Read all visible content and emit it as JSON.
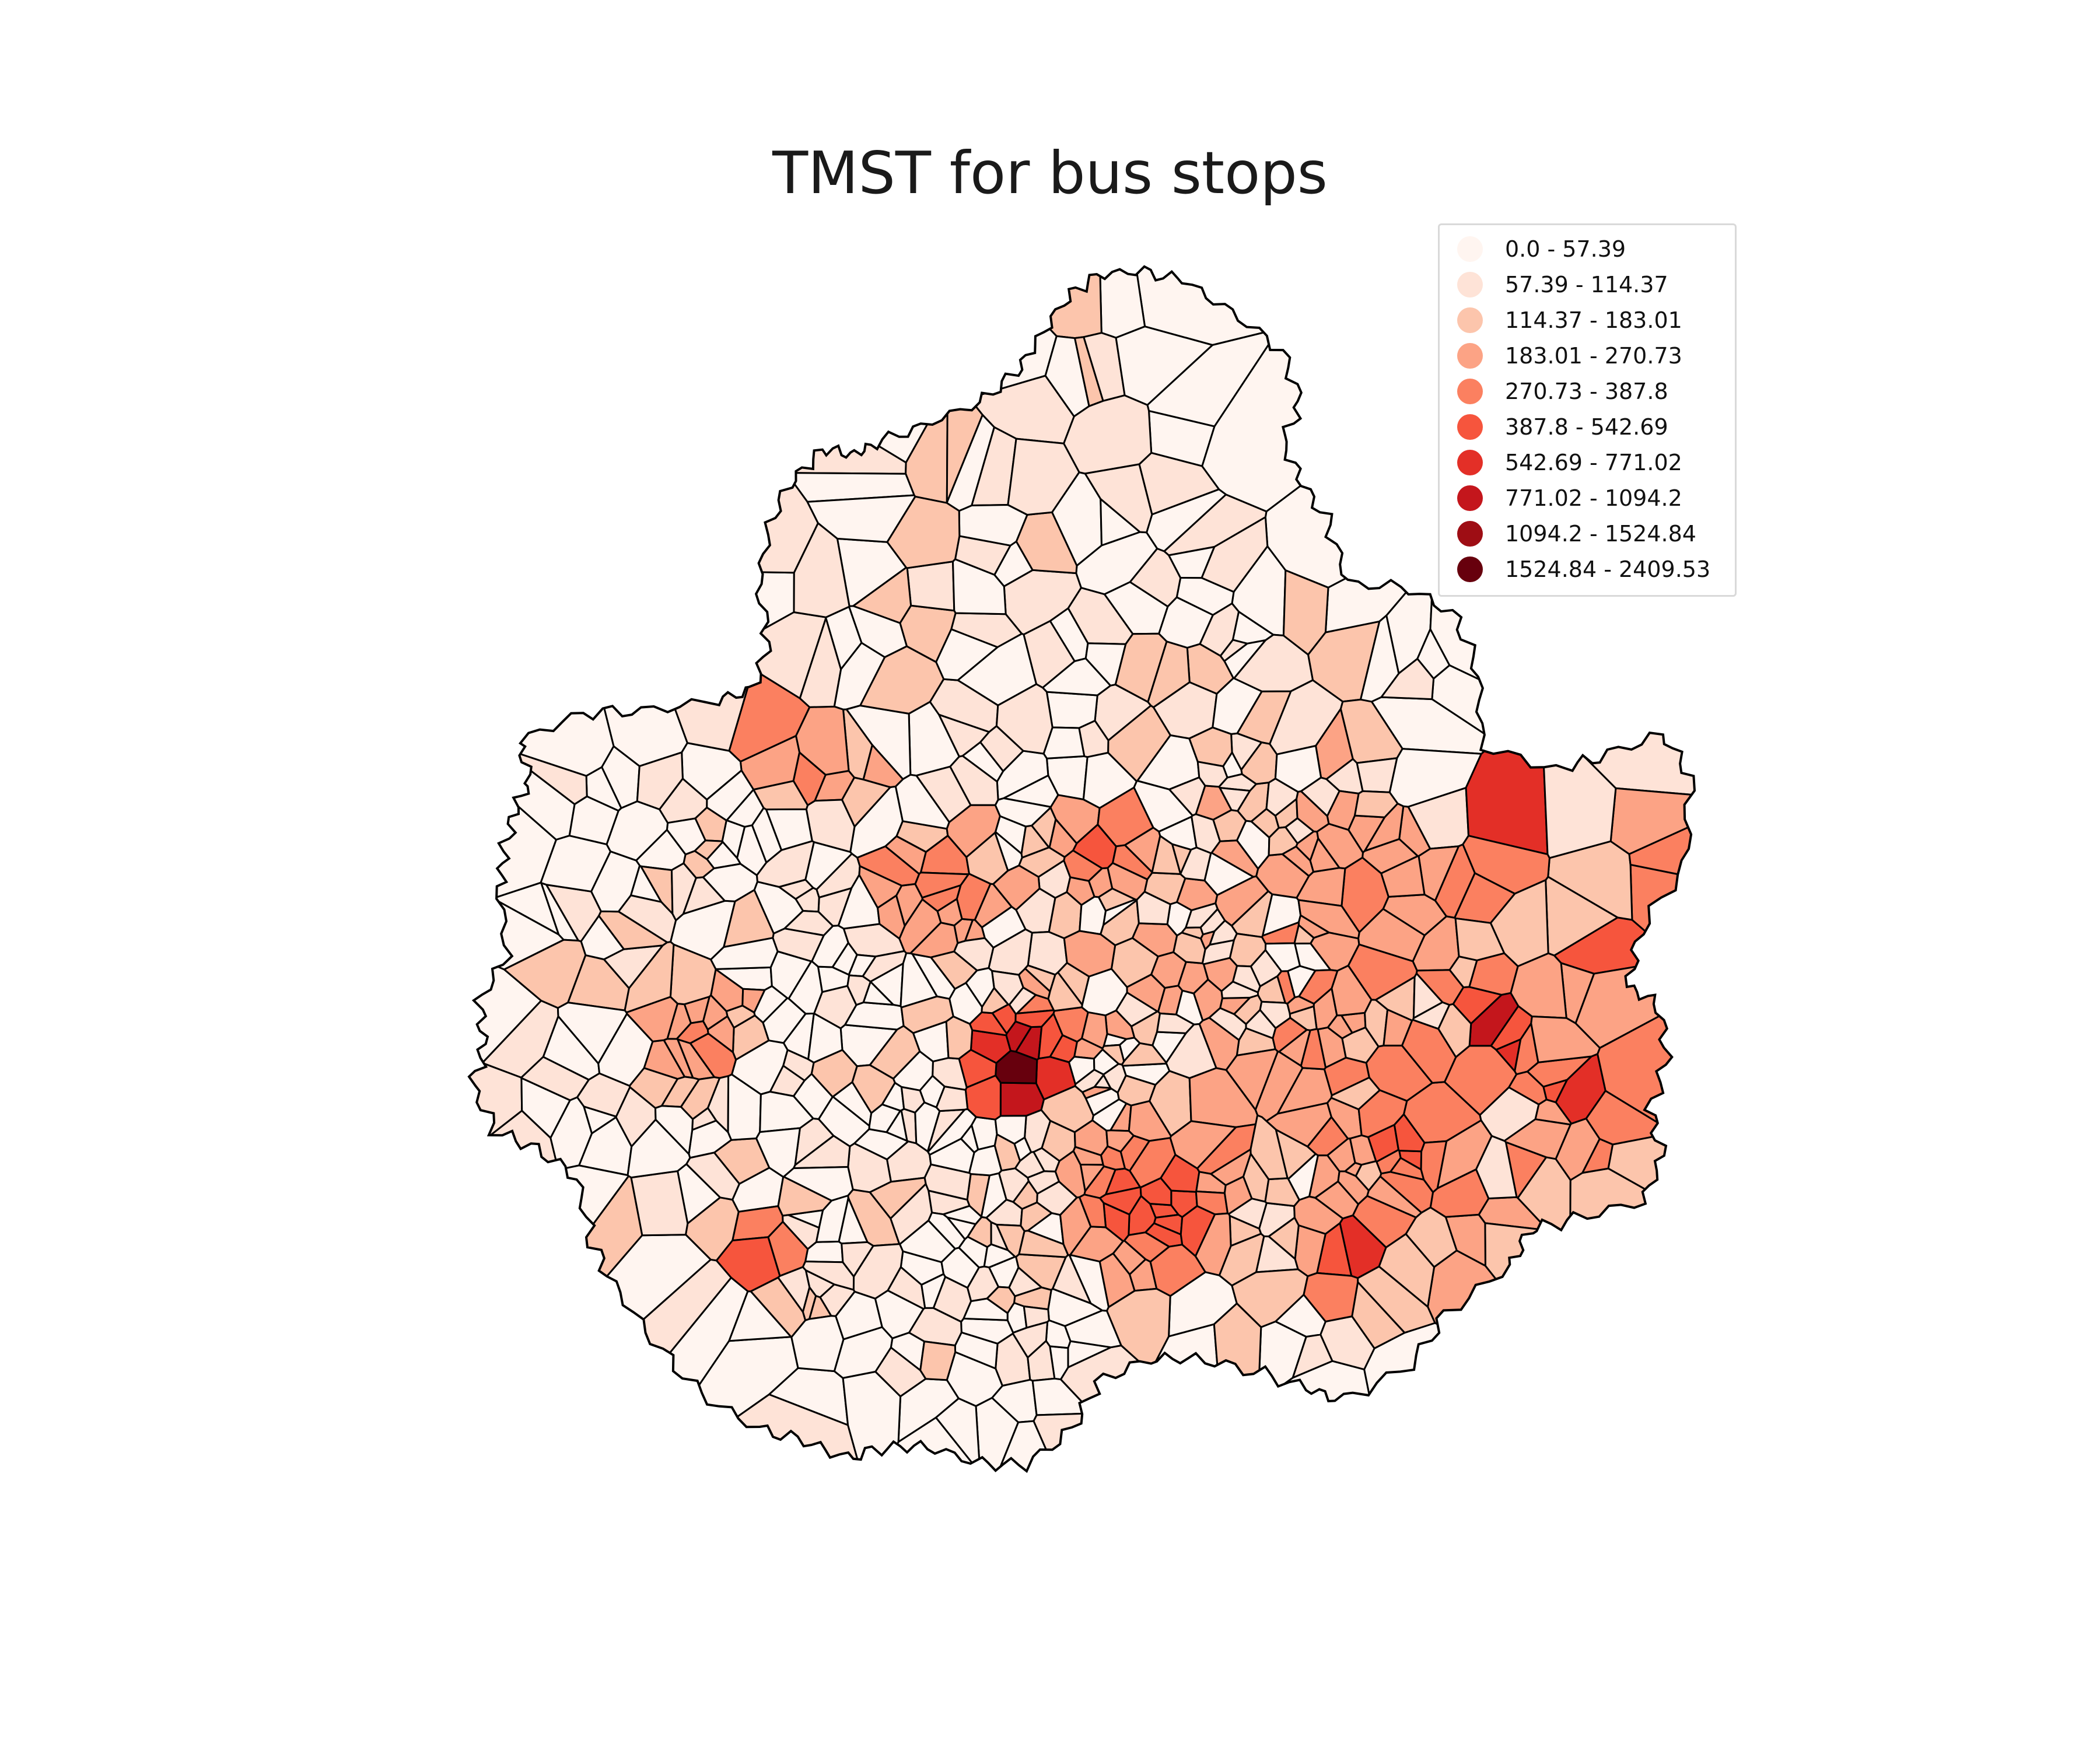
{
  "title": "TMST for bus stops",
  "legend": {
    "items": [
      {
        "label": "0.0 - 57.39",
        "color": "#fff5f0"
      },
      {
        "label": "57.39 - 114.37",
        "color": "#fee3d7"
      },
      {
        "label": "114.37 - 183.01",
        "color": "#fcc5ac"
      },
      {
        "label": "183.01 - 270.73",
        "color": "#fca385"
      },
      {
        "label": "270.73 - 387.8",
        "color": "#fb8060"
      },
      {
        "label": "387.8 - 542.69",
        "color": "#f6553d"
      },
      {
        "label": "542.69 - 771.02",
        "color": "#e32f27"
      },
      {
        "label": "771.02 - 1094.2",
        "color": "#c4161c"
      },
      {
        "label": "1094.2 - 1524.84",
        "color": "#9e0d14"
      },
      {
        "label": "1524.84 - 2409.53",
        "color": "#67000d"
      }
    ]
  },
  "map": {
    "stroke_color": "#000000",
    "classification": "quantile bins of TMST per bus-stop Voronoi cell",
    "hotspots": [
      {
        "area": "center-west",
        "bin": 9
      },
      {
        "area": "center-east",
        "bin": 8
      },
      {
        "area": "east",
        "bin": 7
      },
      {
        "area": "south-center",
        "bin": 6
      },
      {
        "area": "north-west",
        "bin": 5
      }
    ]
  }
}
